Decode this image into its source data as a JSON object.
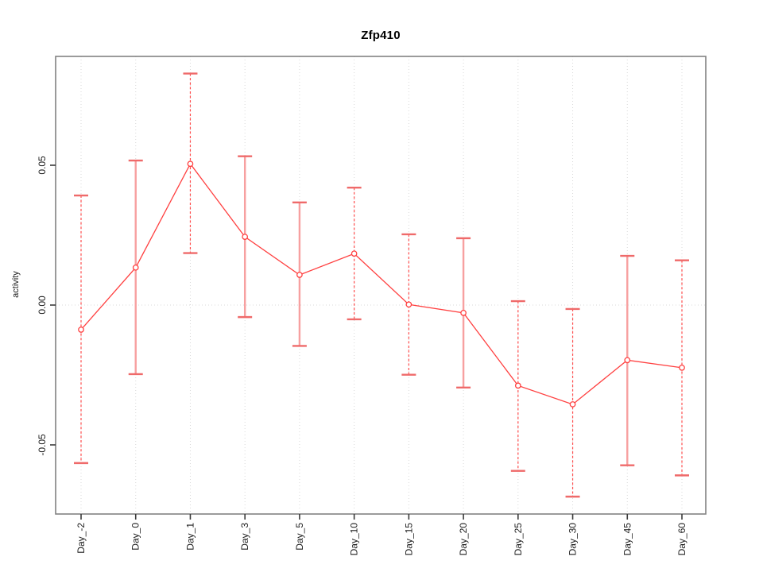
{
  "chart_data": {
    "type": "line",
    "title": "Zfp410",
    "xlabel": "",
    "ylabel": "activity",
    "categories": [
      "Day_-2",
      "Day_0",
      "Day_1",
      "Day_3",
      "Day_5",
      "Day_10",
      "Day_15",
      "Day_20",
      "Day_25",
      "Day_30",
      "Day_45",
      "Day_60"
    ],
    "series": [
      {
        "name": "activity",
        "values": [
          -0.0088,
          0.0134,
          0.0505,
          0.0244,
          0.0108,
          0.0184,
          0.0002,
          -0.0028,
          -0.0288,
          -0.0355,
          -0.0197,
          -0.0224
        ],
        "upper": [
          0.0392,
          0.0517,
          0.0828,
          0.0532,
          0.0367,
          0.042,
          0.0253,
          0.0239,
          0.0014,
          -0.0014,
          0.0176,
          0.016
        ],
        "lower": [
          -0.0565,
          -0.0247,
          0.0186,
          -0.0043,
          -0.0146,
          -0.0051,
          -0.0249,
          -0.0295,
          -0.0593,
          -0.0685,
          -0.0573,
          -0.0609
        ],
        "error_bar_styles": [
          "dashed",
          "solid",
          "dashed",
          "solid",
          "solid",
          "dashed",
          "dashed",
          "solid",
          "dashed",
          "dashed",
          "solid",
          "dashed"
        ]
      }
    ],
    "yticks": [
      -0.05,
      0,
      0.05
    ],
    "ytick_labels": [
      "-0.05",
      "0.00",
      "0.05"
    ],
    "ylim": [
      -0.0747,
      0.0889
    ],
    "grid": {
      "vertical_dotted_at_each_category": true,
      "horizontal_dotted_at_zero": true
    },
    "legend": "none",
    "marker": "open-circle",
    "colors": {
      "line": "#ff4040",
      "marker_stroke": "#ff4040",
      "errorbar_solid": "#f7a0a0",
      "errorbar_dashed": "#ff4d4d",
      "cap": "#ef6a6a",
      "grid": "#d9d9d9",
      "axis_box": "#828282",
      "tick_mark": "#3a3a3a",
      "text": "#1a1a1a"
    }
  }
}
